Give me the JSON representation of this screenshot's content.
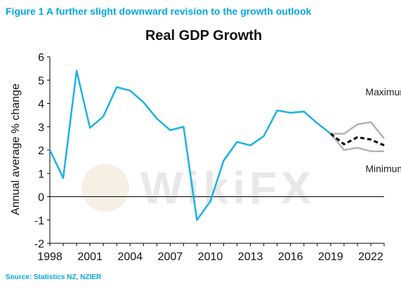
{
  "figure_caption": "Figure 1 A further slight downward revision to the growth outlook",
  "source_note": "Source: Statistics NZ, NZIER",
  "watermark": "WikiFX",
  "chart_data": {
    "type": "line",
    "title": "Real GDP Growth",
    "ylabel": "Annual average % change",
    "xlabel": "",
    "xlim": [
      1998,
      2023
    ],
    "ylim": [
      -2,
      6
    ],
    "x_tick_labels": [
      "1998",
      "2001",
      "2004",
      "2007",
      "2010",
      "2013",
      "2016",
      "2019",
      "2022"
    ],
    "y_tick_labels": [
      "-2",
      "-1",
      "0",
      "1",
      "2",
      "3",
      "4",
      "5",
      "6"
    ],
    "zero_line": true,
    "grid": false,
    "colors": {
      "history": "#1ab2e4",
      "forecast": "#000000",
      "range": "#b3b3b3",
      "zero": "#000000"
    },
    "series": [
      {
        "style": "solid",
        "x": [
          1998,
          1999,
          2000,
          2001,
          2002,
          2003,
          2004,
          2005,
          2006,
          2007,
          2008,
          2009,
          2010,
          2011,
          2012,
          2013,
          2014,
          2015,
          2016,
          2017,
          2018,
          2019
        ],
        "y": [
          2.0,
          0.8,
          5.4,
          2.95,
          3.45,
          4.7,
          4.55,
          4.05,
          3.35,
          2.85,
          3.0,
          -1.0,
          -0.2,
          1.55,
          2.35,
          2.2,
          2.6,
          3.7,
          3.6,
          3.65,
          3.15,
          2.7
        ]
      },
      {
        "style": "dashed",
        "x": [
          2019,
          2020,
          2021,
          2022,
          2023
        ],
        "y": [
          2.7,
          2.25,
          2.55,
          2.45,
          2.2
        ]
      },
      {
        "name": "Maximum",
        "style": "solid",
        "x": [
          2019,
          2020,
          2021,
          2022,
          2023
        ],
        "y": [
          2.7,
          2.7,
          3.1,
          3.2,
          2.5
        ]
      },
      {
        "name": "Minimum",
        "style": "solid",
        "x": [
          2019,
          2020,
          2021,
          2022,
          2023
        ],
        "y": [
          2.7,
          2.0,
          2.1,
          1.95,
          1.95
        ]
      }
    ],
    "annotations": [
      {
        "text": "Maximum",
        "x": 2021.6,
        "y": 4.35
      },
      {
        "text": "Minimum",
        "x": 2021.6,
        "y": 1.05
      }
    ]
  }
}
